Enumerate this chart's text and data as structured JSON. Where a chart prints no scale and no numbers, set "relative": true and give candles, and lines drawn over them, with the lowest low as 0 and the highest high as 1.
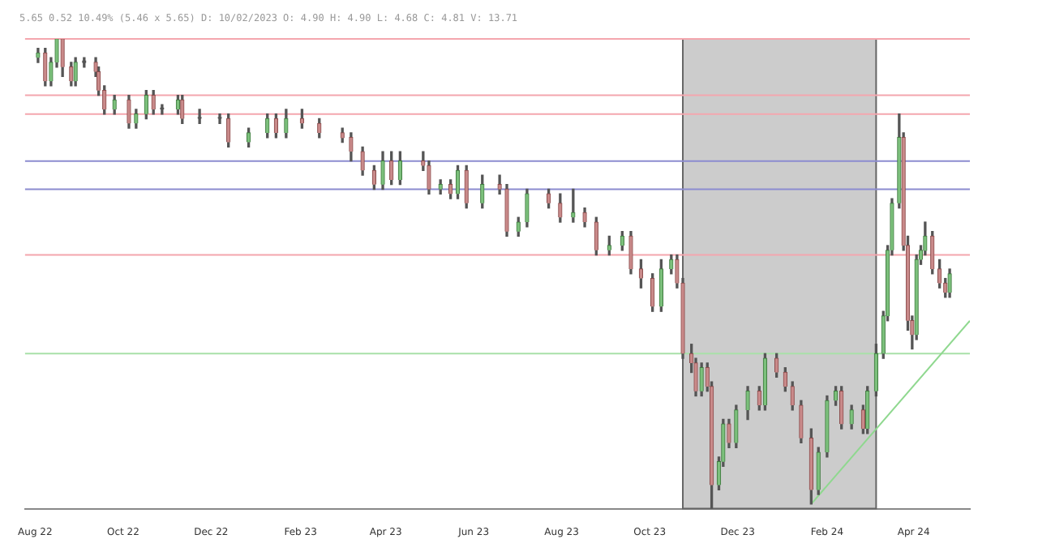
{
  "chart_data": {
    "type": "candlestick",
    "title": "5.65 0.52 10.49% (5.46 x 5.65) D: 10/02/2023 O: 4.90 H: 4.90 L: 4.68 C: 4.81 V: 13.71",
    "relative": true,
    "x": [
      "2022-08-03",
      "2022-08-08",
      "2022-08-12",
      "2022-08-16",
      "2022-08-20",
      "2022-08-26",
      "2022-08-29",
      "2022-09-04",
      "2022-09-12",
      "2022-09-14",
      "2022-09-18",
      "2022-09-25",
      "2022-10-05",
      "2022-10-10",
      "2022-10-17",
      "2022-10-22",
      "2022-10-28",
      "2022-11-08",
      "2022-11-11",
      "2022-11-23",
      "2022-12-07",
      "2022-12-13",
      "2022-12-27",
      "2023-01-09",
      "2023-01-15",
      "2023-01-22",
      "2023-02-02",
      "2023-02-14",
      "2023-03-02",
      "2023-03-08",
      "2023-03-16",
      "2023-03-24",
      "2023-03-30",
      "2023-04-05",
      "2023-04-11",
      "2023-04-27",
      "2023-05-01",
      "2023-05-09",
      "2023-05-16",
      "2023-05-21",
      "2023-05-27",
      "2023-06-07",
      "2023-06-19",
      "2023-06-24",
      "2023-07-02",
      "2023-07-08",
      "2023-07-23",
      "2023-07-31",
      "2023-08-09",
      "2023-08-17",
      "2023-08-25",
      "2023-09-03",
      "2023-09-12",
      "2023-09-18",
      "2023-09-25",
      "2023-10-03",
      "2023-10-09",
      "2023-10-16",
      "2023-10-20",
      "2023-10-24",
      "2023-10-30",
      "2023-11-02",
      "2023-11-06",
      "2023-11-10",
      "2023-11-13",
      "2023-11-18",
      "2023-11-21",
      "2023-11-25",
      "2023-11-30",
      "2023-12-08",
      "2023-12-16",
      "2023-12-20",
      "2023-12-28",
      "2024-01-03",
      "2024-01-08",
      "2024-01-14",
      "2024-01-21",
      "2024-01-26",
      "2024-02-01",
      "2024-02-07",
      "2024-02-11",
      "2024-02-18",
      "2024-02-26",
      "2024-02-29",
      "2024-03-06",
      "2024-03-11",
      "2024-03-14",
      "2024-03-17",
      "2024-03-22",
      "2024-03-25",
      "2024-03-28",
      "2024-03-31",
      "2024-04-03",
      "2024-04-06",
      "2024-04-09",
      "2024-04-14",
      "2024-04-19",
      "2024-04-23",
      "2024-04-26"
    ],
    "ohlc": [
      [
        0.96,
        0.98,
        0.95,
        0.97
      ],
      [
        0.97,
        0.98,
        0.9,
        0.91
      ],
      [
        0.91,
        0.96,
        0.9,
        0.95
      ],
      [
        0.95,
        1.0,
        0.94,
        1.0
      ],
      [
        1.0,
        1.0,
        0.92,
        0.94
      ],
      [
        0.94,
        0.95,
        0.9,
        0.91
      ],
      [
        0.91,
        0.96,
        0.9,
        0.95
      ],
      [
        0.95,
        0.96,
        0.94,
        0.95
      ],
      [
        0.95,
        0.96,
        0.92,
        0.93
      ],
      [
        0.93,
        0.94,
        0.88,
        0.89
      ],
      [
        0.89,
        0.9,
        0.84,
        0.85
      ],
      [
        0.85,
        0.88,
        0.84,
        0.87
      ],
      [
        0.87,
        0.88,
        0.81,
        0.82
      ],
      [
        0.82,
        0.85,
        0.81,
        0.84
      ],
      [
        0.84,
        0.89,
        0.83,
        0.88
      ],
      [
        0.88,
        0.89,
        0.84,
        0.85
      ],
      [
        0.85,
        0.86,
        0.84,
        0.85
      ],
      [
        0.85,
        0.88,
        0.84,
        0.87
      ],
      [
        0.87,
        0.88,
        0.82,
        0.83
      ],
      [
        0.83,
        0.85,
        0.82,
        0.83
      ],
      [
        0.83,
        0.84,
        0.82,
        0.83
      ],
      [
        0.83,
        0.84,
        0.77,
        0.78
      ],
      [
        0.78,
        0.81,
        0.77,
        0.8
      ],
      [
        0.8,
        0.84,
        0.79,
        0.83
      ],
      [
        0.83,
        0.84,
        0.79,
        0.8
      ],
      [
        0.8,
        0.85,
        0.79,
        0.83
      ],
      [
        0.83,
        0.85,
        0.81,
        0.82
      ],
      [
        0.82,
        0.83,
        0.79,
        0.8
      ],
      [
        0.8,
        0.81,
        0.78,
        0.79
      ],
      [
        0.79,
        0.8,
        0.74,
        0.76
      ],
      [
        0.76,
        0.77,
        0.71,
        0.72
      ],
      [
        0.72,
        0.73,
        0.68,
        0.69
      ],
      [
        0.69,
        0.76,
        0.68,
        0.74
      ],
      [
        0.74,
        0.76,
        0.69,
        0.7
      ],
      [
        0.7,
        0.76,
        0.69,
        0.74
      ],
      [
        0.74,
        0.76,
        0.72,
        0.73
      ],
      [
        0.73,
        0.74,
        0.67,
        0.68
      ],
      [
        0.68,
        0.7,
        0.67,
        0.69
      ],
      [
        0.69,
        0.7,
        0.66,
        0.67
      ],
      [
        0.67,
        0.73,
        0.66,
        0.72
      ],
      [
        0.72,
        0.73,
        0.64,
        0.65
      ],
      [
        0.65,
        0.71,
        0.64,
        0.69
      ],
      [
        0.69,
        0.71,
        0.67,
        0.68
      ],
      [
        0.68,
        0.69,
        0.58,
        0.59
      ],
      [
        0.59,
        0.62,
        0.58,
        0.61
      ],
      [
        0.61,
        0.68,
        0.6,
        0.67
      ],
      [
        0.67,
        0.68,
        0.64,
        0.65
      ],
      [
        0.65,
        0.67,
        0.61,
        0.62
      ],
      [
        0.62,
        0.68,
        0.61,
        0.63
      ],
      [
        0.63,
        0.64,
        0.6,
        0.61
      ],
      [
        0.61,
        0.62,
        0.54,
        0.55
      ],
      [
        0.55,
        0.58,
        0.54,
        0.56
      ],
      [
        0.56,
        0.59,
        0.55,
        0.58
      ],
      [
        0.58,
        0.59,
        0.5,
        0.51
      ],
      [
        0.51,
        0.53,
        0.47,
        0.49
      ],
      [
        0.49,
        0.5,
        0.42,
        0.43
      ],
      [
        0.43,
        0.53,
        0.42,
        0.51
      ],
      [
        0.51,
        0.54,
        0.5,
        0.53
      ],
      [
        0.53,
        0.54,
        0.47,
        0.48
      ],
      [
        0.48,
        0.49,
        0.32,
        0.33
      ],
      [
        0.33,
        0.35,
        0.29,
        0.31
      ],
      [
        0.31,
        0.32,
        0.24,
        0.25
      ],
      [
        0.25,
        0.31,
        0.24,
        0.3
      ],
      [
        0.3,
        0.31,
        0.25,
        0.26
      ],
      [
        0.26,
        0.27,
        0.0,
        0.05
      ],
      [
        0.05,
        0.11,
        0.04,
        0.1
      ],
      [
        0.1,
        0.19,
        0.09,
        0.18
      ],
      [
        0.18,
        0.19,
        0.13,
        0.14
      ],
      [
        0.14,
        0.22,
        0.13,
        0.21
      ],
      [
        0.21,
        0.26,
        0.19,
        0.25
      ],
      [
        0.25,
        0.26,
        0.21,
        0.22
      ],
      [
        0.22,
        0.33,
        0.21,
        0.32
      ],
      [
        0.32,
        0.33,
        0.28,
        0.29
      ],
      [
        0.29,
        0.3,
        0.25,
        0.26
      ],
      [
        0.26,
        0.27,
        0.21,
        0.22
      ],
      [
        0.22,
        0.23,
        0.14,
        0.15
      ],
      [
        0.15,
        0.17,
        0.01,
        0.04
      ],
      [
        0.04,
        0.13,
        0.03,
        0.12
      ],
      [
        0.12,
        0.24,
        0.11,
        0.23
      ],
      [
        0.23,
        0.26,
        0.22,
        0.25
      ],
      [
        0.25,
        0.26,
        0.17,
        0.18
      ],
      [
        0.18,
        0.22,
        0.17,
        0.21
      ],
      [
        0.21,
        0.22,
        0.16,
        0.17
      ],
      [
        0.17,
        0.26,
        0.16,
        0.25
      ],
      [
        0.25,
        0.35,
        0.24,
        0.33
      ],
      [
        0.33,
        0.42,
        0.32,
        0.41
      ],
      [
        0.41,
        0.56,
        0.4,
        0.55
      ],
      [
        0.55,
        0.66,
        0.54,
        0.65
      ],
      [
        0.65,
        0.84,
        0.64,
        0.79
      ],
      [
        0.79,
        0.8,
        0.55,
        0.56
      ],
      [
        0.56,
        0.58,
        0.38,
        0.4
      ],
      [
        0.4,
        0.41,
        0.34,
        0.37
      ],
      [
        0.37,
        0.54,
        0.36,
        0.53
      ],
      [
        0.53,
        0.56,
        0.52,
        0.55
      ],
      [
        0.55,
        0.61,
        0.54,
        0.58
      ],
      [
        0.58,
        0.59,
        0.5,
        0.51
      ],
      [
        0.51,
        0.53,
        0.47,
        0.48
      ],
      [
        0.48,
        0.49,
        0.45,
        0.46
      ],
      [
        0.46,
        0.51,
        0.45,
        0.5
      ]
    ],
    "series": [
      {
        "type": "line",
        "color": "#8fd88f",
        "x": [
          "2024-01-21",
          "2024-05-10"
        ],
        "values": [
          0.01,
          0.4
        ]
      }
    ],
    "xlim": [
      "2022-07-25",
      "2024-05-10"
    ],
    "xticks": [
      {
        "value": "2022-08-01",
        "label": "Aug 22"
      },
      {
        "value": "2022-10-01",
        "label": "Oct 22"
      },
      {
        "value": "2022-12-01",
        "label": "Dec 22"
      },
      {
        "value": "2023-02-01",
        "label": "Feb 23"
      },
      {
        "value": "2023-04-01",
        "label": "Apr 23"
      },
      {
        "value": "2023-06-01",
        "label": "Jun 23"
      },
      {
        "value": "2023-08-01",
        "label": "Aug 23"
      },
      {
        "value": "2023-10-01",
        "label": "Oct 23"
      },
      {
        "value": "2023-12-01",
        "label": "Dec 23"
      },
      {
        "value": "2024-02-01",
        "label": "Feb 24"
      },
      {
        "value": "2024-04-01",
        "label": "Apr 24"
      }
    ],
    "ref_lines": [
      {
        "axis": "y",
        "value": 1.0,
        "color": "#f4a6ae"
      },
      {
        "axis": "y",
        "value": 0.88,
        "color": "#f4a6ae"
      },
      {
        "axis": "y",
        "value": 0.84,
        "color": "#f4a6ae"
      },
      {
        "axis": "y",
        "value": 0.74,
        "color": "#8c8cd0"
      },
      {
        "axis": "y",
        "value": 0.68,
        "color": "#8c8cd0"
      },
      {
        "axis": "y",
        "value": 0.54,
        "color": "#f4a6ae"
      },
      {
        "axis": "y",
        "value": 0.33,
        "color": "#a8e0a8"
      }
    ],
    "bands": [
      {
        "axis": "x",
        "from": "2023-10-24",
        "to": "2024-03-06",
        "color": "#cccccc"
      }
    ]
  }
}
